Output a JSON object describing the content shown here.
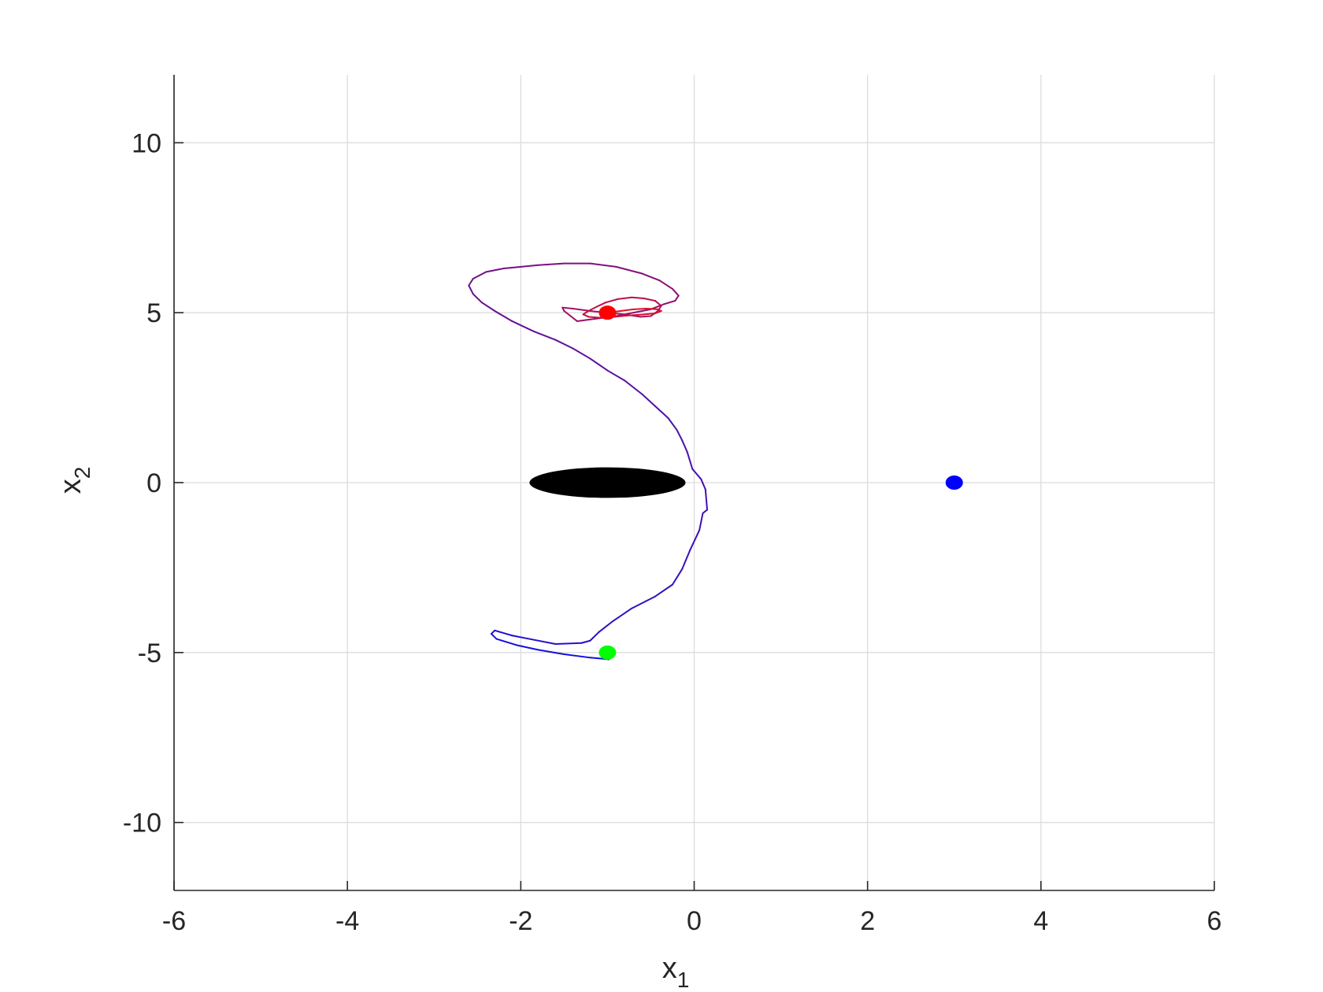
{
  "chart_data": {
    "type": "line",
    "title": "",
    "xlabel": {
      "base": "x",
      "sub": "1"
    },
    "ylabel": {
      "base": "x",
      "sub": "2"
    },
    "xlim": [
      -6,
      6
    ],
    "ylim": [
      -12,
      12
    ],
    "xticks": [
      -6,
      -4,
      -2,
      0,
      2,
      4,
      6
    ],
    "yticks": [
      -10,
      -5,
      0,
      5,
      10
    ],
    "xtick_labels": [
      "-6",
      "-4",
      "-2",
      "0",
      "2",
      "4",
      "6"
    ],
    "ytick_labels": [
      "-10",
      "-5",
      "0",
      "5",
      "10"
    ],
    "grid": true,
    "colors": {
      "trajectory_start": "#1010e0",
      "trajectory_end": "#e0102a",
      "obstacle": "#000000",
      "start_marker": "#00ff00",
      "goal_marker": "#ff0000",
      "other_marker": "#0000ff",
      "axis": "#262626",
      "grid": "#dcdcdc"
    },
    "obstacle": {
      "cx": -1.0,
      "cy": 0.0,
      "rx": 0.9,
      "ry": 0.45
    },
    "markers": [
      {
        "name": "start",
        "x": -1.0,
        "y": -5.0,
        "color": "#00ff00"
      },
      {
        "name": "goal",
        "x": -1.0,
        "y": 5.0,
        "color": "#ff0000"
      },
      {
        "name": "other",
        "x": 3.0,
        "y": 0.0,
        "color": "#0000ff"
      }
    ],
    "trajectory": {
      "x": [
        -0.98,
        -1.2,
        -1.5,
        -1.8,
        -2.05,
        -2.28,
        -2.34,
        -2.3,
        -2.1,
        -1.9,
        -1.6,
        -1.3,
        -1.2,
        -1.1,
        -0.95,
        -0.72,
        -0.45,
        -0.25,
        -0.14,
        -0.05,
        0.06,
        0.1,
        0.15,
        0.13,
        0.08,
        -0.02,
        -0.08,
        -0.14,
        -0.2,
        -0.3,
        -0.45,
        -0.6,
        -0.8,
        -1.0,
        -1.2,
        -1.4,
        -1.6,
        -1.85,
        -2.1,
        -2.3,
        -2.45,
        -2.55,
        -2.6,
        -2.55,
        -2.4,
        -2.2,
        -2.0,
        -1.8,
        -1.5,
        -1.2,
        -0.9,
        -0.6,
        -0.4,
        -0.25,
        -0.18,
        -0.22,
        -0.35,
        -0.5,
        -0.7,
        -0.9,
        -1.05,
        -1.2,
        -1.35,
        -1.5,
        -1.52,
        -1.4,
        -1.2,
        -1.0,
        -0.8,
        -0.62,
        -0.5,
        -0.42,
        -0.38,
        -0.45,
        -0.58,
        -0.72,
        -0.88,
        -1.02,
        -1.12,
        -1.22,
        -1.28,
        -1.22,
        -1.08,
        -0.92,
        -0.75,
        -0.58,
        -0.45,
        -0.38,
        -0.42,
        -0.55,
        -0.7,
        -0.85,
        -1.0
      ],
      "y": [
        -5.2,
        -5.15,
        -5.05,
        -4.92,
        -4.78,
        -4.6,
        -4.45,
        -4.35,
        -4.5,
        -4.6,
        -4.75,
        -4.72,
        -4.65,
        -4.4,
        -4.1,
        -3.7,
        -3.35,
        -3.0,
        -2.55,
        -2.0,
        -1.4,
        -0.9,
        -0.8,
        -0.2,
        0.1,
        0.4,
        0.9,
        1.25,
        1.55,
        1.9,
        2.25,
        2.6,
        3.0,
        3.3,
        3.65,
        3.95,
        4.2,
        4.45,
        4.75,
        5.05,
        5.3,
        5.55,
        5.8,
        6.0,
        6.2,
        6.3,
        6.35,
        6.4,
        6.45,
        6.45,
        6.35,
        6.15,
        5.95,
        5.7,
        5.5,
        5.35,
        5.25,
        5.1,
        5.0,
        4.9,
        4.85,
        4.8,
        4.75,
        5.05,
        5.15,
        5.12,
        5.05,
        5.0,
        4.95,
        4.88,
        4.9,
        5.05,
        5.2,
        5.35,
        5.42,
        5.45,
        5.4,
        5.3,
        5.18,
        5.05,
        4.95,
        4.88,
        4.85,
        4.88,
        4.92,
        4.95,
        4.98,
        5.05,
        5.1,
        5.12,
        5.1,
        5.05,
        5.0
      ]
    }
  }
}
